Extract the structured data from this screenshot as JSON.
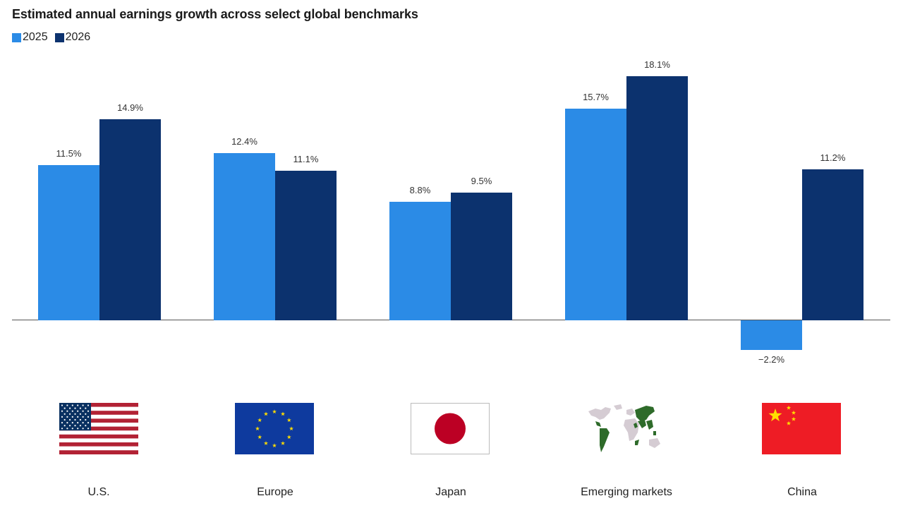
{
  "title": "Estimated annual earnings growth across select global benchmarks",
  "legend": [
    {
      "label": "2025",
      "color": "#2B8BE6"
    },
    {
      "label": "2026",
      "color": "#0C326E"
    }
  ],
  "categories": [
    {
      "label": "U.S.",
      "icon": "us-flag-icon",
      "v2025": "11.5%",
      "v2026": "14.9%"
    },
    {
      "label": "Europe",
      "icon": "eu-flag-icon",
      "v2025": "12.4%",
      "v2026": "11.1%"
    },
    {
      "label": "Japan",
      "icon": "japan-flag-icon",
      "v2025": "8.8%",
      "v2026": "9.5%"
    },
    {
      "label": "Emerging markets",
      "icon": "world-map-icon",
      "v2025": "15.7%",
      "v2026": "18.1%"
    },
    {
      "label": "China",
      "icon": "china-flag-icon",
      "v2025": "−2.2%",
      "v2026": "11.2%"
    }
  ],
  "chart_data": {
    "type": "bar",
    "title": "Estimated annual earnings growth across select global benchmarks",
    "categories": [
      "U.S.",
      "Europe",
      "Japan",
      "Emerging markets",
      "China"
    ],
    "series": [
      {
        "name": "2025",
        "color": "#2B8BE6",
        "values": [
          11.5,
          12.4,
          8.8,
          15.7,
          -2.2
        ]
      },
      {
        "name": "2026",
        "color": "#0C326E",
        "values": [
          14.9,
          11.1,
          9.5,
          18.1,
          11.2
        ]
      }
    ],
    "xlabel": "",
    "ylabel": "",
    "ylim": [
      -2.2,
      18.1
    ],
    "grid": false,
    "legend_position": "top-left",
    "data_labels": true,
    "unit": "%"
  }
}
